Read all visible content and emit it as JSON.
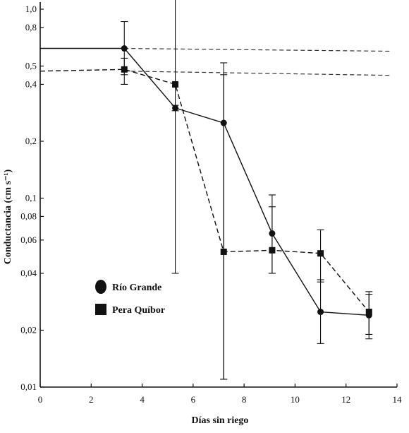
{
  "chart_data": {
    "type": "line",
    "title": "",
    "xlabel": "Días sin riego",
    "ylabel": "Conductancia (cm s⁻¹)",
    "y_scale": "log",
    "xlim": [
      0,
      14
    ],
    "ylim": [
      0.01,
      1.0
    ],
    "x_ticks": [
      "0",
      "2",
      "4",
      "6",
      "8",
      "10",
      "12",
      "14"
    ],
    "x_tick_values": [
      0,
      2,
      4,
      6,
      8,
      10,
      12,
      14
    ],
    "y_ticks": [
      {
        "label": "0,01",
        "value": 0.01
      },
      {
        "label": "0,02",
        "value": 0.02
      },
      {
        "label": "0,04",
        "value": 0.04
      },
      {
        "label": "0,06",
        "value": 0.06
      },
      {
        "label": "0,08",
        "value": 0.08
      },
      {
        "label": "0,1",
        "value": 0.1
      },
      {
        "label": "0,2",
        "value": 0.2
      },
      {
        "label": "0,4",
        "value": 0.4
      },
      {
        "label": "0,5",
        "value": 0.5
      },
      {
        "label": "0,8",
        "value": 0.8
      },
      {
        "label": "1,0",
        "value": 1.0
      }
    ],
    "grid": false,
    "legend_position": "lower-left",
    "series": [
      {
        "name": "Río Grande",
        "marker": "circle",
        "color": "#111111",
        "line_style": "solid",
        "control_level": 0.62,
        "points": [
          {
            "x": 0,
            "y": 0.62
          },
          {
            "x": 3.3,
            "y": 0.62,
            "err": [
              0.45,
              0.86
            ]
          },
          {
            "x": 5.3,
            "y": 0.3,
            "err": [
              0.29,
              0.31
            ]
          },
          {
            "x": 7.2,
            "y": 0.25,
            "err": [
              0.011,
              0.52
            ]
          },
          {
            "x": 9.1,
            "y": 0.065,
            "err": [
              0.04,
              0.104
            ]
          },
          {
            "x": 11.0,
            "y": 0.025,
            "err": [
              0.017,
              0.037
            ]
          },
          {
            "x": 12.9,
            "y": 0.024,
            "err": [
              0.018,
              0.031
            ]
          }
        ]
      },
      {
        "name": "Pera Quíbor",
        "marker": "square",
        "color": "#111111",
        "line_style": "dashed",
        "control_level": 0.47,
        "points": [
          {
            "x": 0,
            "y": 0.47
          },
          {
            "x": 3.3,
            "y": 0.48,
            "err": [
              0.4,
              0.55
            ]
          },
          {
            "x": 5.3,
            "y": 0.4,
            "err": [
              0.04,
              1.5
            ]
          },
          {
            "x": 7.2,
            "y": 0.052,
            "err": [
              0.011,
              0.45
            ]
          },
          {
            "x": 9.1,
            "y": 0.053,
            "err": [
              0.04,
              0.09
            ]
          },
          {
            "x": 11.0,
            "y": 0.051,
            "err": [
              0.036,
              0.068
            ]
          },
          {
            "x": 12.9,
            "y": 0.025,
            "err": [
              0.019,
              0.032
            ]
          }
        ]
      }
    ]
  }
}
